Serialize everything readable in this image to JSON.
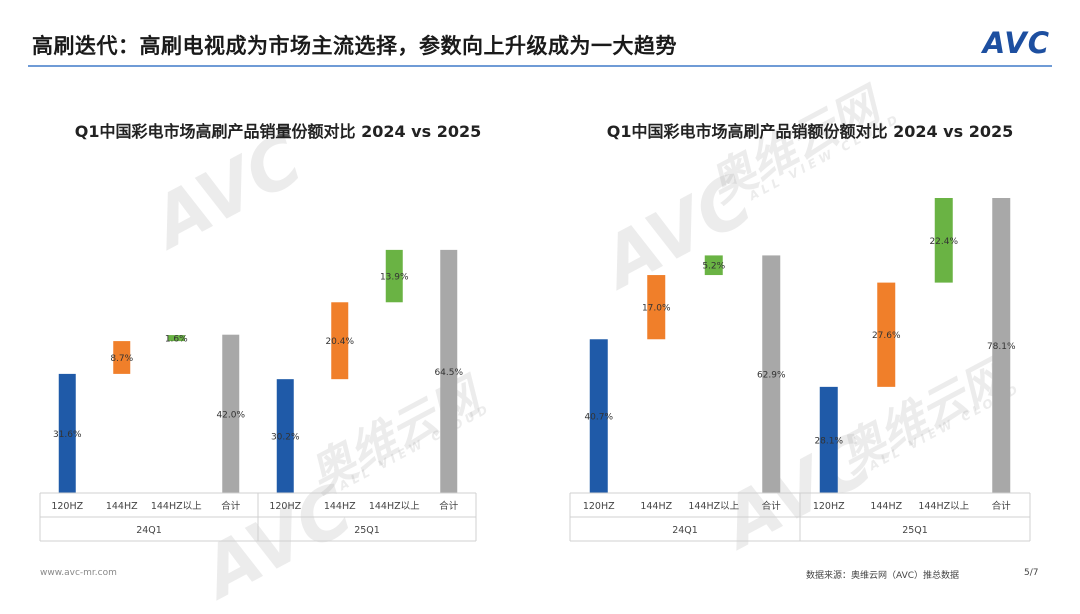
{
  "header": {
    "title": "高刷迭代：高刷电视成为市场主流选择，参数向上升级成为一大趋势",
    "logo_text": "AVC"
  },
  "watermark": {
    "brand": "AVC",
    "cn": "奥维云网",
    "en": "ALL VIEW CLOUD"
  },
  "footer": {
    "website": "www.avc-mr.com",
    "source": "数据来源：奥维云网（AVC）推总数据",
    "page": "5/7"
  },
  "colors": {
    "120HZ": "#1f5aa8",
    "144HZ": "#f07f2a",
    "144HZ以上": "#6ab344",
    "合计": "#a8a8a8"
  },
  "chart_data": [
    {
      "type": "bar",
      "title": "Q1中国彩电市场高刷产品销量份额对比 2024 vs 2025",
      "categories": [
        "120HZ",
        "144HZ",
        "144HZ以上",
        "合计"
      ],
      "groups": [
        "24Q1",
        "25Q1"
      ],
      "series": [
        {
          "name": "24Q1",
          "values": [
            31.6,
            8.7,
            1.6,
            42.0
          ],
          "labels": [
            "31.6%",
            "8.7%",
            "1.6%",
            "42.0%"
          ]
        },
        {
          "name": "25Q1",
          "values": [
            30.2,
            20.4,
            13.9,
            64.5
          ],
          "labels": [
            "30.2%",
            "20.4%",
            "13.9%",
            "64.5%"
          ]
        }
      ],
      "ylim": [
        0,
        65
      ]
    },
    {
      "type": "bar",
      "title": "Q1中国彩电市场高刷产品销额份额对比 2024 vs 2025",
      "categories": [
        "120HZ",
        "144HZ",
        "144HZ以上",
        "合计"
      ],
      "groups": [
        "24Q1",
        "25Q1"
      ],
      "series": [
        {
          "name": "24Q1",
          "values": [
            40.7,
            17.0,
            5.2,
            62.9
          ],
          "labels": [
            "40.7%",
            "17.0%",
            "5.2%",
            "62.9%"
          ]
        },
        {
          "name": "25Q1",
          "values": [
            28.1,
            27.6,
            22.4,
            78.1
          ],
          "labels": [
            "28.1%",
            "27.6%",
            "22.4%",
            "78.1%"
          ]
        }
      ],
      "ylim": [
        0,
        78.1
      ]
    }
  ]
}
